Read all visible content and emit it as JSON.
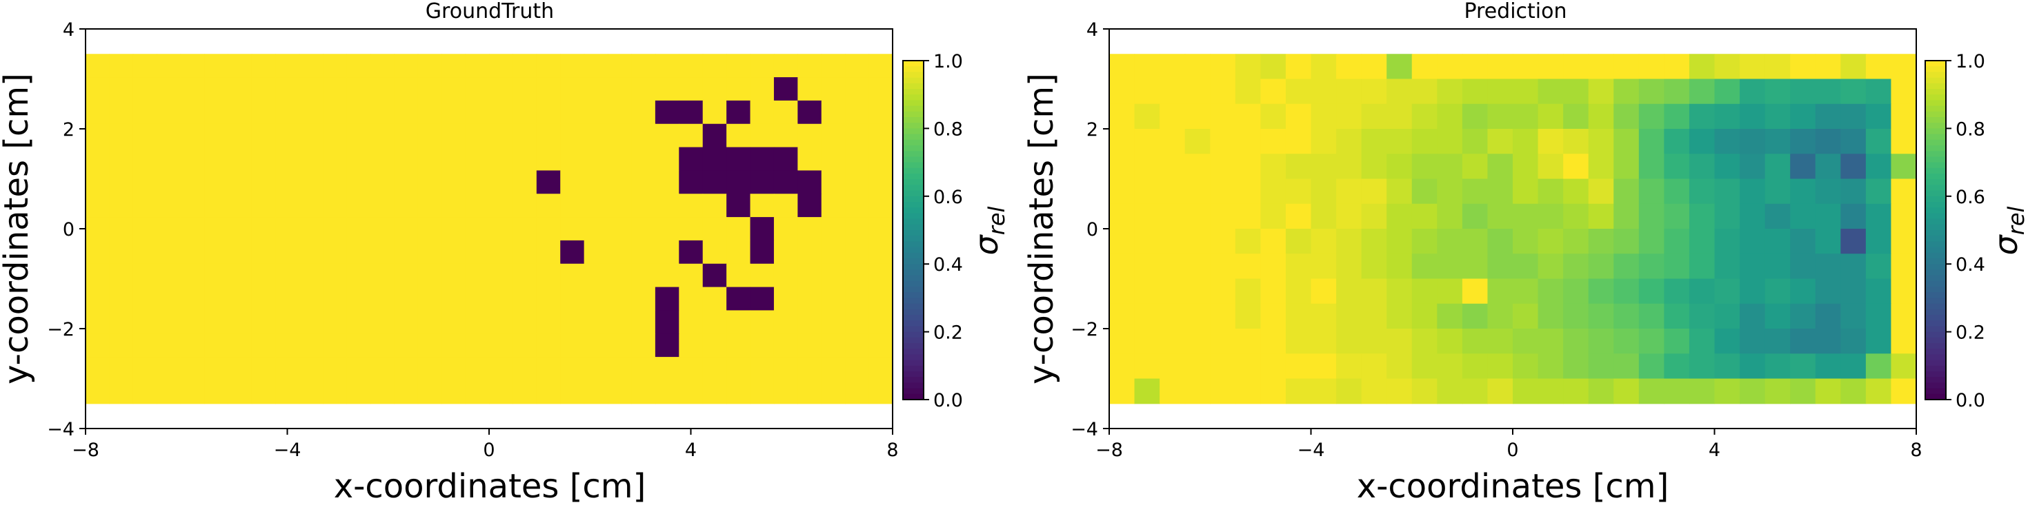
{
  "chart_data": [
    {
      "type": "heatmap",
      "title": "GroundTruth",
      "xlabel": "x-coordinates [cm]",
      "ylabel": "y-coordinates [cm]",
      "xlim": [
        -8,
        8
      ],
      "ylim": [
        -4,
        4
      ],
      "x_ticks": [
        -8,
        -4,
        0,
        4,
        8
      ],
      "y_ticks": [
        -4,
        -2,
        0,
        2,
        4
      ],
      "x_tick_labels": [
        "−8",
        "−4",
        "0",
        "4",
        "8"
      ],
      "y_tick_labels": [
        "−4",
        "−2",
        "0",
        "2",
        "4"
      ],
      "grid": false,
      "colorbar": {
        "label": "σ",
        "label_subscript": "rel",
        "range": [
          0,
          1
        ],
        "ticks": [
          0.0,
          0.2,
          0.4,
          0.6,
          0.8,
          1.0
        ],
        "tick_labels": [
          "0.0",
          "0.2",
          "0.4",
          "0.6",
          "0.8",
          "1.0"
        ]
      },
      "colormap": "viridis",
      "extent": {
        "x": [
          -8,
          8
        ],
        "y": [
          -3.5,
          3.5
        ]
      },
      "columns": 34,
      "rows": 15,
      "values": [
        "1111111111111111111111111111111111",
        "1111111111111111111111111111101111",
        "1111111111111111111111110010110111",
        "1111111111111111111111111101111111",
        "1111111111111111111111111000001111",
        "1111111111111111111011111000000111",
        "1111111111111111111111111110110111",
        "1111111111111111111111111111011111",
        "1111111111111111111101111011011111",
        "1111111111111111111111111101111111",
        "1111111111111111111111110110011111",
        "1111111111111111111111110111111111",
        "1111111111111111111111110111111111",
        "1111111111111111111111111111111111",
        "1111111111111111111111111111111111"
      ]
    },
    {
      "type": "heatmap",
      "title": "Prediction",
      "xlabel": "x-coordinates [cm]",
      "ylabel": "y-coordinates [cm]",
      "xlim": [
        -8,
        8
      ],
      "ylim": [
        -4,
        4
      ],
      "x_ticks": [
        -8,
        -4,
        0,
        4,
        8
      ],
      "y_ticks": [
        -4,
        -2,
        0,
        2,
        4
      ],
      "x_tick_labels": [
        "−8",
        "−4",
        "0",
        "4",
        "8"
      ],
      "y_tick_labels": [
        "−4",
        "−2",
        "0",
        "2",
        "4"
      ],
      "grid": false,
      "colorbar": {
        "label": "σ",
        "label_subscript": "rel",
        "range": [
          0,
          1
        ],
        "ticks": [
          0.0,
          0.2,
          0.4,
          0.6,
          0.8,
          1.0
        ],
        "tick_labels": [
          "0.0",
          "0.2",
          "0.4",
          "0.6",
          "0.8",
          "1.0"
        ]
      },
      "colormap": "viridis",
      "extent": {
        "x": [
          -8,
          8
        ],
        "y": [
          -3.5,
          3.5
        ]
      },
      "columns": 32,
      "rows": 14,
      "values": [
        [
          1.0,
          1.0,
          1.0,
          1.0,
          1.0,
          0.97,
          0.95,
          1.0,
          0.97,
          1.0,
          1.0,
          0.85,
          1.0,
          1.0,
          1.0,
          1.0,
          1.0,
          1.0,
          1.0,
          1.0,
          1.0,
          1.0,
          1.0,
          0.92,
          0.95,
          0.97,
          0.97,
          1.0,
          1.0,
          0.95,
          1.0,
          1.0
        ],
        [
          1.0,
          1.0,
          1.0,
          1.0,
          1.0,
          0.97,
          1.0,
          0.97,
          0.97,
          0.97,
          0.97,
          0.95,
          0.95,
          0.92,
          0.9,
          0.9,
          0.9,
          0.87,
          0.87,
          0.92,
          0.85,
          0.82,
          0.8,
          0.75,
          0.7,
          0.6,
          0.62,
          0.6,
          0.6,
          0.62,
          0.6,
          1.0
        ],
        [
          1.0,
          0.97,
          1.0,
          1.0,
          1.0,
          1.0,
          0.97,
          1.0,
          0.97,
          0.97,
          0.95,
          0.95,
          0.92,
          0.9,
          0.85,
          0.87,
          0.87,
          0.9,
          0.85,
          0.9,
          0.82,
          0.75,
          0.7,
          0.6,
          0.58,
          0.55,
          0.58,
          0.55,
          0.5,
          0.5,
          0.55,
          1.0
        ],
        [
          1.0,
          1.0,
          1.0,
          0.97,
          1.0,
          1.0,
          1.0,
          1.0,
          0.97,
          0.95,
          0.92,
          0.92,
          0.9,
          0.9,
          0.87,
          0.92,
          0.9,
          0.97,
          0.95,
          0.92,
          0.85,
          0.72,
          0.62,
          0.55,
          0.5,
          0.48,
          0.5,
          0.45,
          0.42,
          0.45,
          0.6,
          1.0
        ],
        [
          1.0,
          1.0,
          1.0,
          1.0,
          1.0,
          1.0,
          0.97,
          0.95,
          0.95,
          0.95,
          0.92,
          0.9,
          0.87,
          0.87,
          0.9,
          0.85,
          0.9,
          0.95,
          1.0,
          0.92,
          0.85,
          0.72,
          0.65,
          0.6,
          0.55,
          0.5,
          0.58,
          0.35,
          0.5,
          0.32,
          0.55,
          0.82
        ],
        [
          1.0,
          1.0,
          1.0,
          1.0,
          1.0,
          1.0,
          0.97,
          0.97,
          0.95,
          0.97,
          0.97,
          0.92,
          0.85,
          0.87,
          0.85,
          0.85,
          0.9,
          0.87,
          0.9,
          0.95,
          0.82,
          0.75,
          0.7,
          0.62,
          0.6,
          0.55,
          0.58,
          0.55,
          0.52,
          0.5,
          0.6,
          1.0
        ],
        [
          1.0,
          1.0,
          1.0,
          1.0,
          1.0,
          1.0,
          0.97,
          1.0,
          0.95,
          0.97,
          0.95,
          0.9,
          0.9,
          0.87,
          0.82,
          0.85,
          0.85,
          0.85,
          0.87,
          0.9,
          0.82,
          0.75,
          0.72,
          0.65,
          0.6,
          0.55,
          0.5,
          0.55,
          0.55,
          0.45,
          0.55,
          1.0
        ],
        [
          1.0,
          1.0,
          1.0,
          1.0,
          1.0,
          0.97,
          1.0,
          0.95,
          0.97,
          0.95,
          0.92,
          0.9,
          0.87,
          0.85,
          0.85,
          0.82,
          0.85,
          0.87,
          0.85,
          0.82,
          0.8,
          0.75,
          0.7,
          0.65,
          0.58,
          0.55,
          0.55,
          0.5,
          0.55,
          0.25,
          0.55,
          1.0
        ],
        [
          1.0,
          1.0,
          1.0,
          1.0,
          1.0,
          1.0,
          1.0,
          0.97,
          0.97,
          0.95,
          0.92,
          0.9,
          0.85,
          0.85,
          0.85,
          0.82,
          0.82,
          0.85,
          0.82,
          0.8,
          0.75,
          0.72,
          0.7,
          0.65,
          0.58,
          0.55,
          0.55,
          0.5,
          0.5,
          0.5,
          0.58,
          1.0
        ],
        [
          1.0,
          1.0,
          1.0,
          1.0,
          1.0,
          0.97,
          1.0,
          0.97,
          1.0,
          0.95,
          0.95,
          0.92,
          0.9,
          0.9,
          1.0,
          0.85,
          0.85,
          0.82,
          0.8,
          0.75,
          0.72,
          0.68,
          0.62,
          0.58,
          0.6,
          0.55,
          0.58,
          0.55,
          0.5,
          0.5,
          0.55,
          1.0
        ],
        [
          1.0,
          1.0,
          1.0,
          1.0,
          1.0,
          0.97,
          1.0,
          0.97,
          0.97,
          0.95,
          0.95,
          0.92,
          0.9,
          0.85,
          0.82,
          0.85,
          0.87,
          0.82,
          0.8,
          0.78,
          0.75,
          0.72,
          0.65,
          0.6,
          0.58,
          0.5,
          0.55,
          0.5,
          0.45,
          0.5,
          0.55,
          1.0
        ],
        [
          1.0,
          1.0,
          1.0,
          1.0,
          1.0,
          1.0,
          1.0,
          0.97,
          0.97,
          0.95,
          0.95,
          0.95,
          0.92,
          0.9,
          0.87,
          0.87,
          0.85,
          0.85,
          0.82,
          0.8,
          0.78,
          0.75,
          0.7,
          0.62,
          0.55,
          0.5,
          0.5,
          0.45,
          0.45,
          0.48,
          0.55,
          1.0
        ],
        [
          1.0,
          1.0,
          1.0,
          1.0,
          1.0,
          1.0,
          1.0,
          1.0,
          1.0,
          0.97,
          0.97,
          0.95,
          0.92,
          0.92,
          0.9,
          0.9,
          0.87,
          0.85,
          0.82,
          0.8,
          0.8,
          0.72,
          0.65,
          0.62,
          0.6,
          0.55,
          0.58,
          0.6,
          0.55,
          0.55,
          0.78,
          0.92
        ],
        [
          1.0,
          0.9,
          1.0,
          1.0,
          1.0,
          1.0,
          1.0,
          0.97,
          0.97,
          0.95,
          0.97,
          0.97,
          0.95,
          0.92,
          0.92,
          0.95,
          0.9,
          0.9,
          0.9,
          0.87,
          0.9,
          0.85,
          0.85,
          0.85,
          0.87,
          0.85,
          0.87,
          0.85,
          0.9,
          0.87,
          0.92,
          1.0
        ]
      ]
    }
  ]
}
